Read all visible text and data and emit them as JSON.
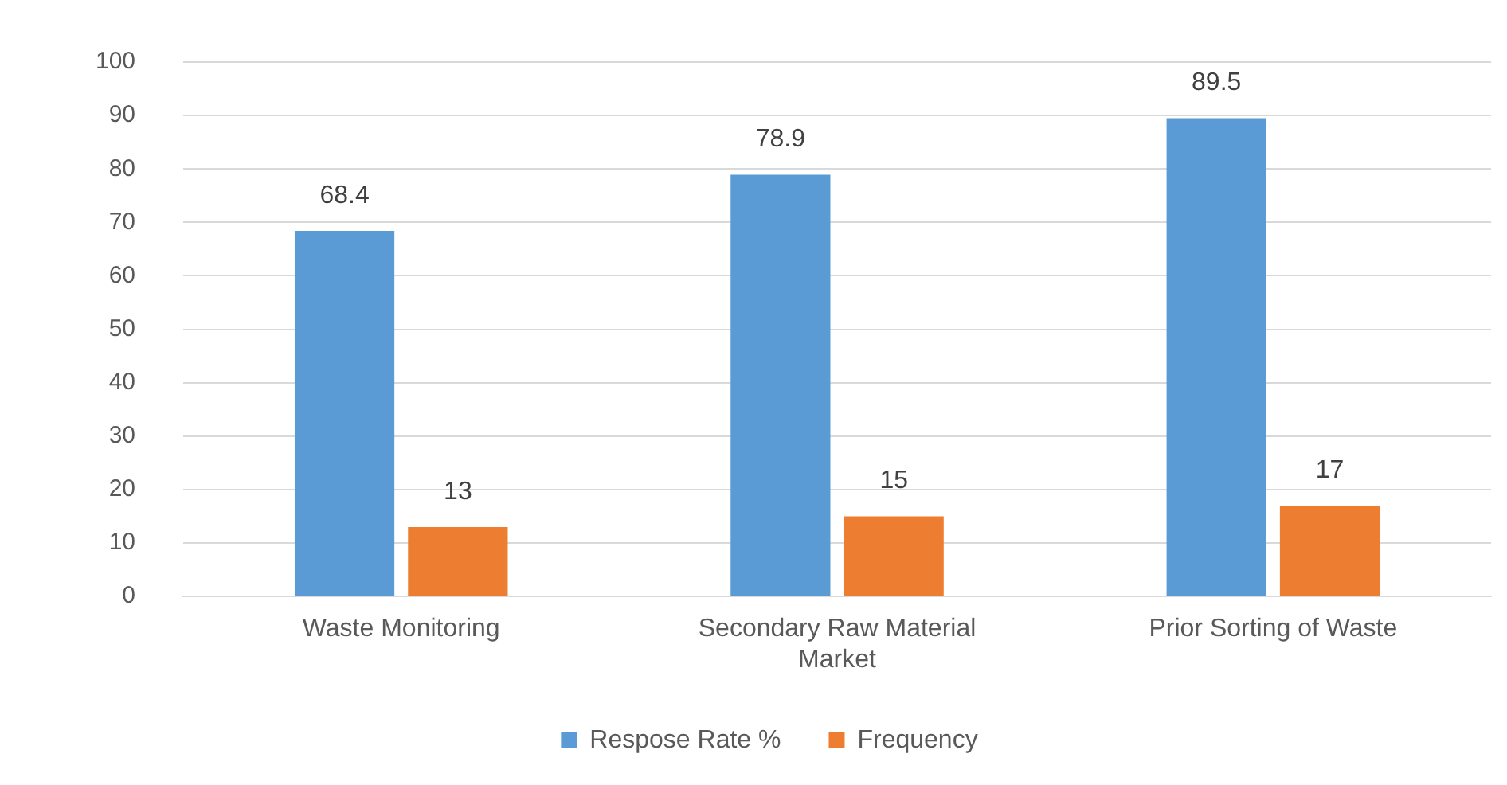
{
  "chart_data": {
    "type": "bar",
    "categories": [
      "Waste Monitoring",
      "Secondary Raw Material Market",
      "Prior Sorting of Waste"
    ],
    "series": [
      {
        "name": "Respose Rate %",
        "color": "#5b9bd5",
        "values": [
          68.4,
          78.9,
          89.5
        ]
      },
      {
        "name": "Frequency",
        "color": "#ed7d31",
        "values": [
          13,
          15,
          17
        ]
      }
    ],
    "ylim": [
      0,
      100
    ],
    "yticks": [
      0,
      10,
      20,
      30,
      40,
      50,
      60,
      70,
      80,
      90,
      100
    ],
    "grid": "y",
    "legend": "bottom",
    "data_labels": true
  }
}
